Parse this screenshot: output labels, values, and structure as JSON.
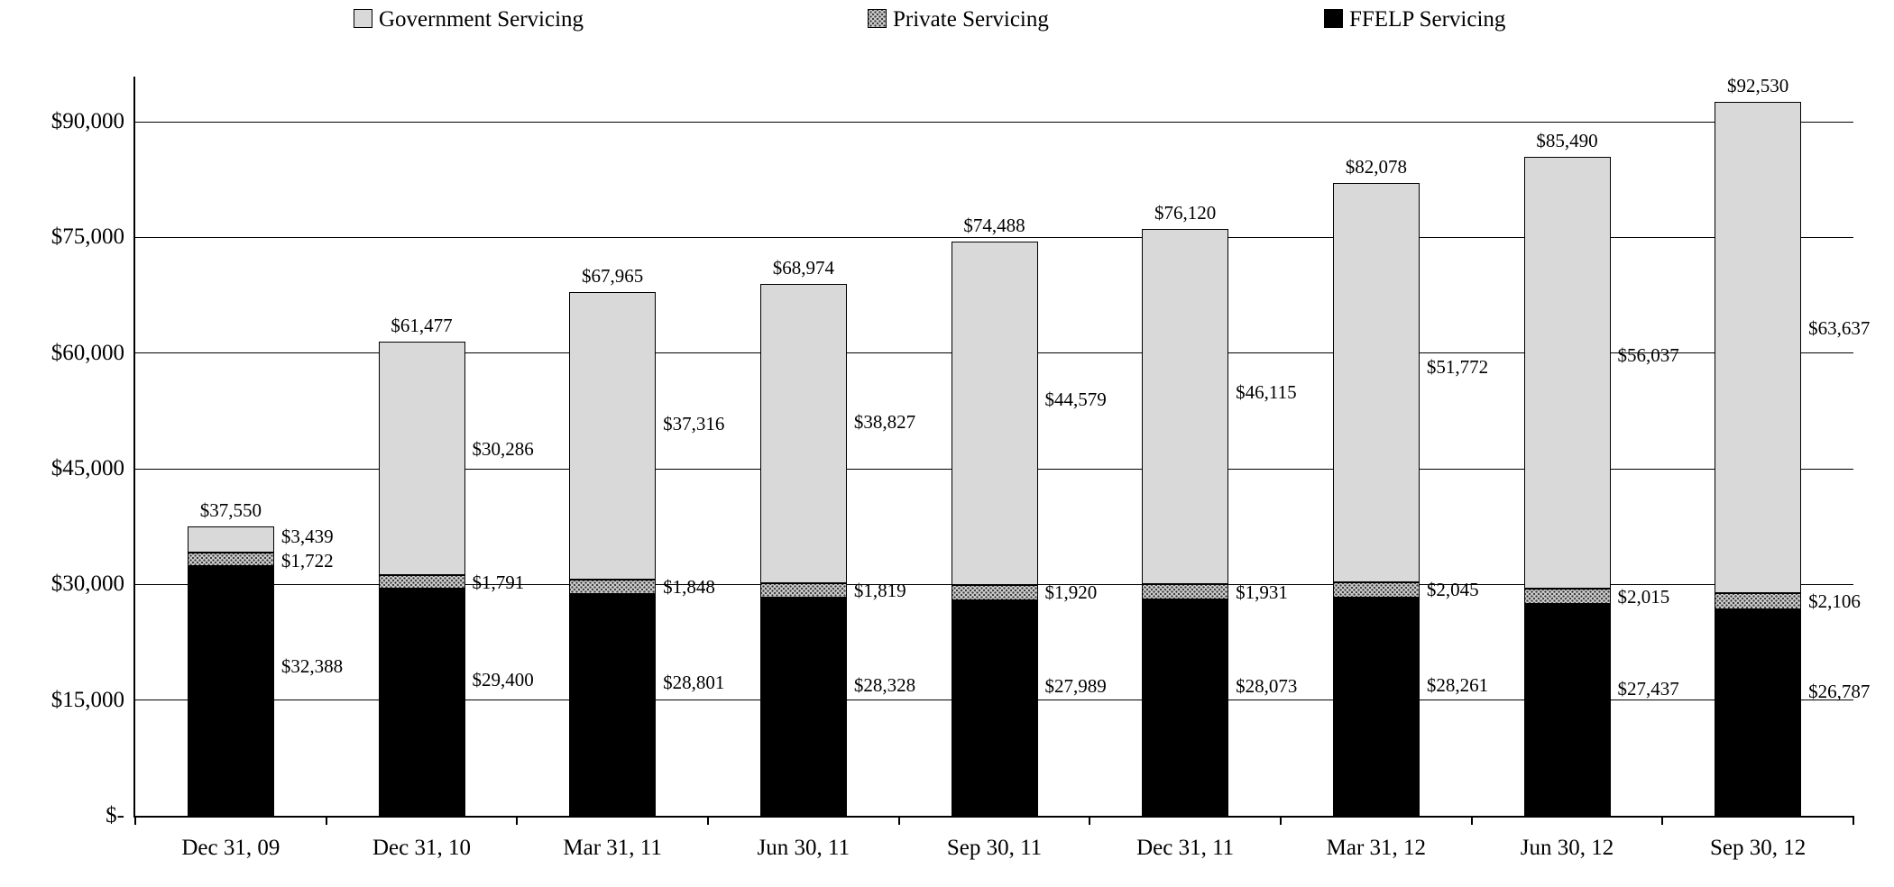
{
  "legend": {
    "items": [
      {
        "label": "Government Servicing",
        "key": "government"
      },
      {
        "label": "Private Servicing",
        "key": "private"
      },
      {
        "label": "FFELP Servicing",
        "key": "ffelp"
      }
    ]
  },
  "chart_data": {
    "type": "bar",
    "stacked": true,
    "title": "",
    "xlabel": "",
    "ylabel": "",
    "grid": true,
    "legend_position": "top",
    "value_prefix": "$",
    "categories": [
      "Dec 31, 09",
      "Dec 31, 10",
      "Mar 31, 11",
      "Jun 30, 11",
      "Sep 30, 11",
      "Dec 31, 11",
      "Mar 31, 12",
      "Jun 30, 12",
      "Sep 30, 12"
    ],
    "series": [
      {
        "name": "FFELP Servicing",
        "key": "ffelp",
        "color": "#000000",
        "pattern": "solid",
        "values": [
          32388,
          29400,
          28801,
          28328,
          27989,
          28073,
          28261,
          27437,
          26787
        ]
      },
      {
        "name": "Private Servicing",
        "key": "private",
        "color": "#cfcfcf",
        "pattern": "speckled-dots",
        "values": [
          1722,
          1791,
          1848,
          1819,
          1920,
          1931,
          2045,
          2015,
          2106
        ]
      },
      {
        "name": "Government Servicing",
        "key": "government",
        "color": "#d9d9d9",
        "pattern": "solid",
        "values": [
          3439,
          30286,
          37316,
          38827,
          44579,
          46115,
          51772,
          56037,
          63637
        ]
      }
    ],
    "totals": [
      37550,
      61477,
      67965,
      68974,
      74488,
      76120,
      82078,
      85490,
      92530
    ],
    "y_axis": {
      "max_plotted": 95000,
      "ticks": [
        {
          "value": 0,
          "label": "$-"
        },
        {
          "value": 15000,
          "label": "$15,000"
        },
        {
          "value": 30000,
          "label": "$30,000"
        },
        {
          "value": 45000,
          "label": "$45,000"
        },
        {
          "value": 60000,
          "label": "$60,000"
        },
        {
          "value": 75000,
          "label": "$75,000"
        },
        {
          "value": 90000,
          "label": "$90,000"
        }
      ]
    }
  }
}
